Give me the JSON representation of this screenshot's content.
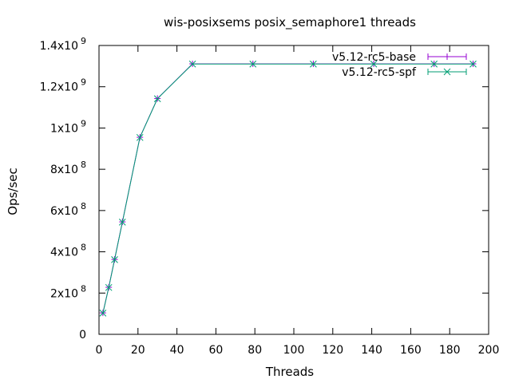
{
  "chart_data": {
    "type": "line",
    "title": "wis-posixsems posix_semaphore1 threads",
    "xlabel": "Threads",
    "ylabel": "Ops/sec",
    "xlim": [
      0,
      200
    ],
    "ylim": [
      0,
      1400000000
    ],
    "x_ticks": [
      {
        "value": 0,
        "label": "0"
      },
      {
        "value": 20,
        "label": "20"
      },
      {
        "value": 40,
        "label": "40"
      },
      {
        "value": 60,
        "label": "60"
      },
      {
        "value": 80,
        "label": "80"
      },
      {
        "value": 100,
        "label": "100"
      },
      {
        "value": 120,
        "label": "120"
      },
      {
        "value": 140,
        "label": "140"
      },
      {
        "value": 160,
        "label": "160"
      },
      {
        "value": 180,
        "label": "180"
      },
      {
        "value": 200,
        "label": "200"
      }
    ],
    "y_ticks": [
      {
        "value": 0,
        "mant": "0",
        "exp": ""
      },
      {
        "value": 200000000,
        "mant": "2x10",
        "exp": "8"
      },
      {
        "value": 400000000,
        "mant": "4x10",
        "exp": "8"
      },
      {
        "value": 600000000,
        "mant": "6x10",
        "exp": "8"
      },
      {
        "value": 800000000,
        "mant": "8x10",
        "exp": "8"
      },
      {
        "value": 1000000000,
        "mant": "1x10",
        "exp": "9"
      },
      {
        "value": 1200000000,
        "mant": "1.2x10",
        "exp": "9"
      },
      {
        "value": 1400000000,
        "mant": "1.4x10",
        "exp": "9"
      }
    ],
    "grid": false,
    "legend_position": "top-right",
    "series": [
      {
        "name": "v5.12-rc5-base",
        "color": "#9400d3",
        "marker": "plus",
        "points": [
          [
            2,
            104000000
          ],
          [
            5,
            228000000
          ],
          [
            8,
            363000000
          ],
          [
            12,
            545000000
          ],
          [
            21,
            955000000
          ],
          [
            30,
            1143000000
          ],
          [
            48,
            1311000000
          ],
          [
            79,
            1311000000
          ],
          [
            110,
            1311000000
          ],
          [
            141,
            1311000000
          ],
          [
            172,
            1311000000
          ],
          [
            192,
            1311000000
          ]
        ]
      },
      {
        "name": "v5.12-rc5-spf",
        "color": "#009e73",
        "marker": "cross",
        "points": [
          [
            2,
            103000000
          ],
          [
            5,
            227000000
          ],
          [
            8,
            362000000
          ],
          [
            12,
            544000000
          ],
          [
            21,
            954000000
          ],
          [
            30,
            1142000000
          ],
          [
            48,
            1310000000
          ],
          [
            79,
            1310000000
          ],
          [
            110,
            1310000000
          ],
          [
            141,
            1310000000
          ],
          [
            172,
            1310000000
          ],
          [
            192,
            1310000000
          ]
        ]
      }
    ]
  }
}
